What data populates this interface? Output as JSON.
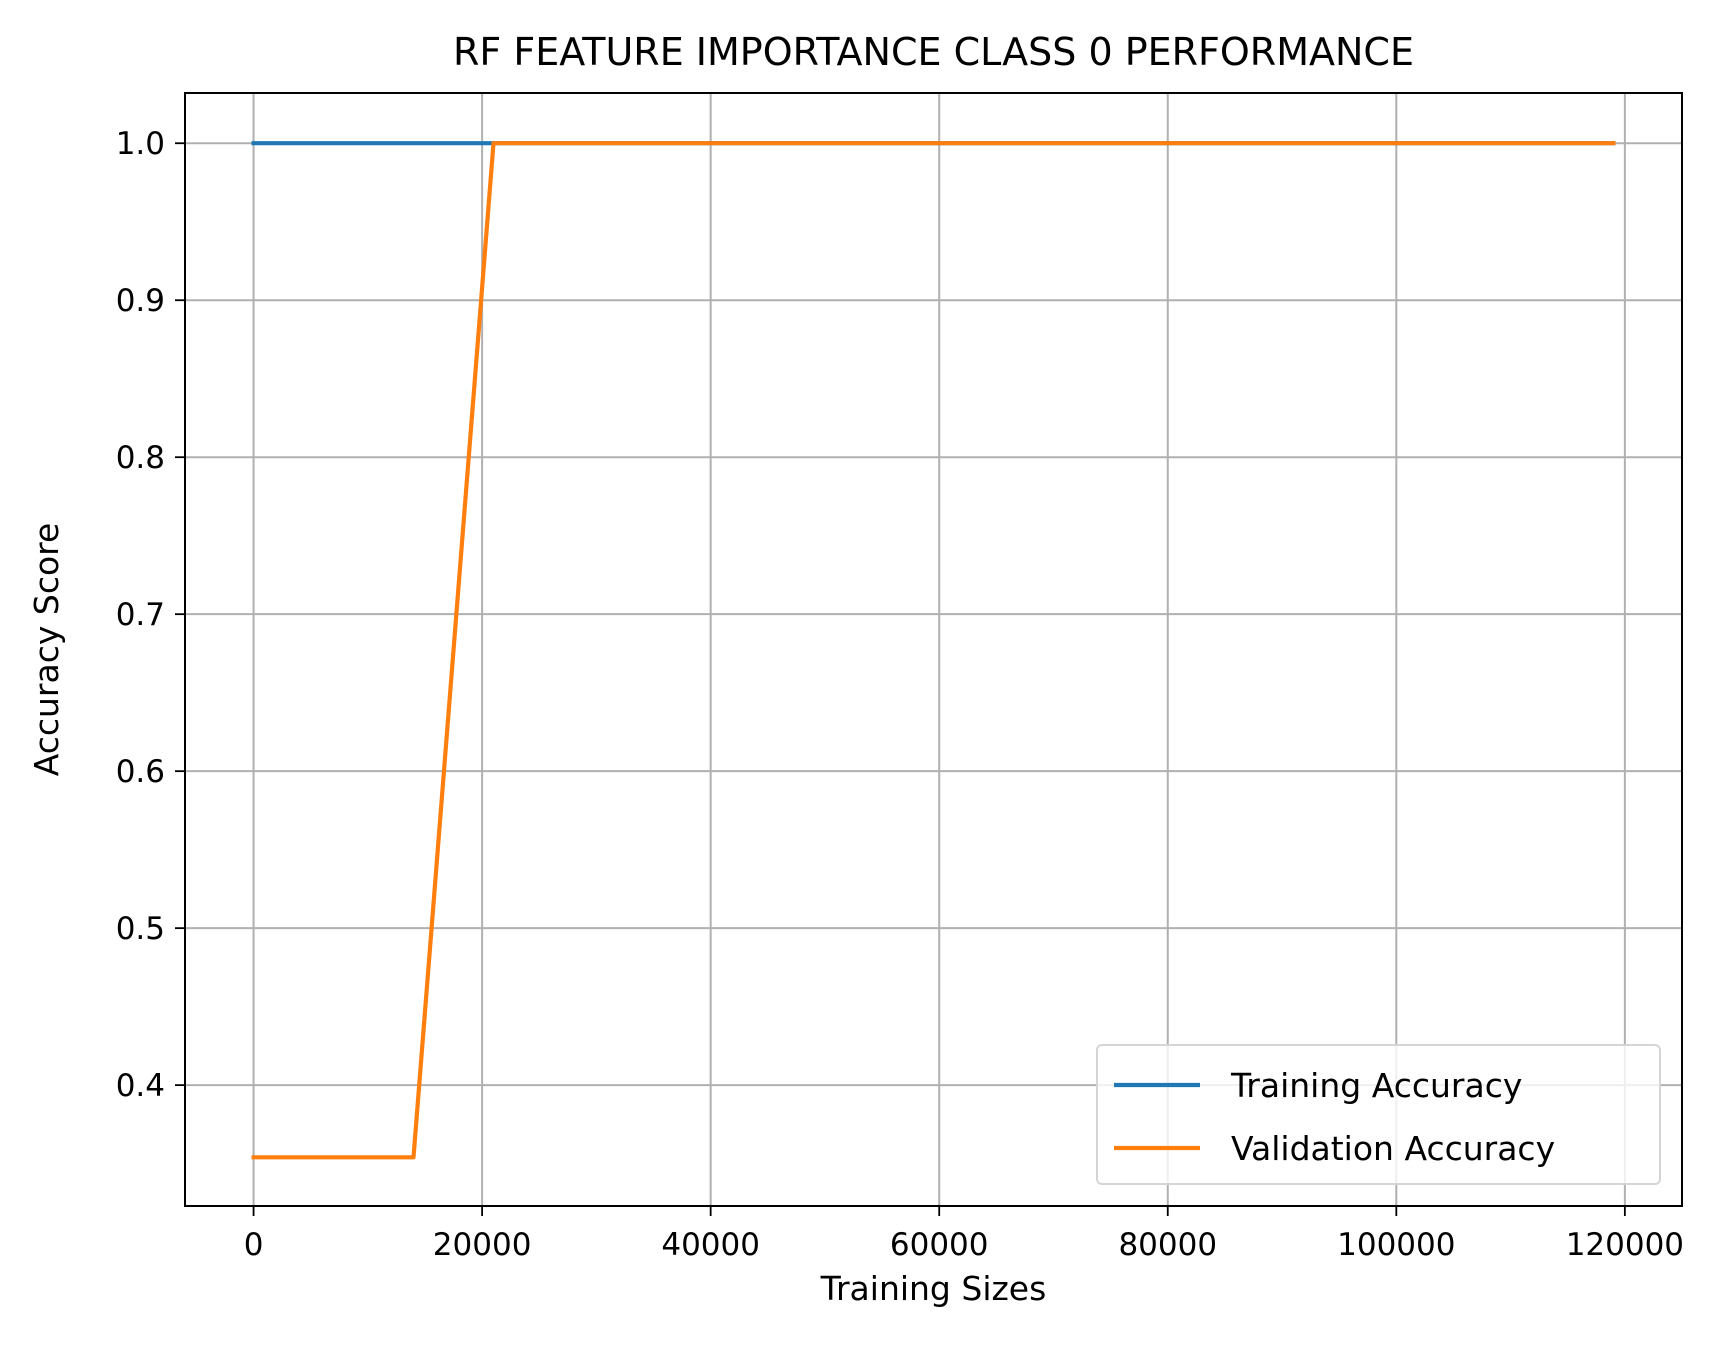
{
  "chart_data": {
    "type": "line",
    "title": "RF FEATURE IMPORTANCE CLASS 0 PERFORMANCE",
    "xlabel": "Training Sizes",
    "ylabel": "Accuracy Score",
    "xlim": [
      -6000,
      125000
    ],
    "ylim": [
      0.323,
      1.032
    ],
    "xticks": [
      0,
      20000,
      40000,
      60000,
      80000,
      100000,
      120000
    ],
    "xtick_labels": [
      "0",
      "20000",
      "40000",
      "60000",
      "80000",
      "100000",
      "120000"
    ],
    "yticks": [
      0.4,
      0.5,
      0.6,
      0.7,
      0.8,
      0.9,
      1.0
    ],
    "ytick_labels": [
      "0.4",
      "0.5",
      "0.6",
      "0.7",
      "0.8",
      "0.9",
      "1.0"
    ],
    "grid": true,
    "legend_position": "lower-right",
    "series": [
      {
        "name": "Training Accuracy",
        "color": "#1f77b4",
        "x": [
          0,
          14000,
          21000,
          119000
        ],
        "y": [
          1.0,
          1.0,
          1.0,
          1.0
        ]
      },
      {
        "name": "Validation Accuracy",
        "color": "#ff7f0e",
        "x": [
          0,
          14000,
          21000,
          119000
        ],
        "y": [
          0.354,
          0.354,
          1.0,
          1.0
        ]
      }
    ]
  }
}
